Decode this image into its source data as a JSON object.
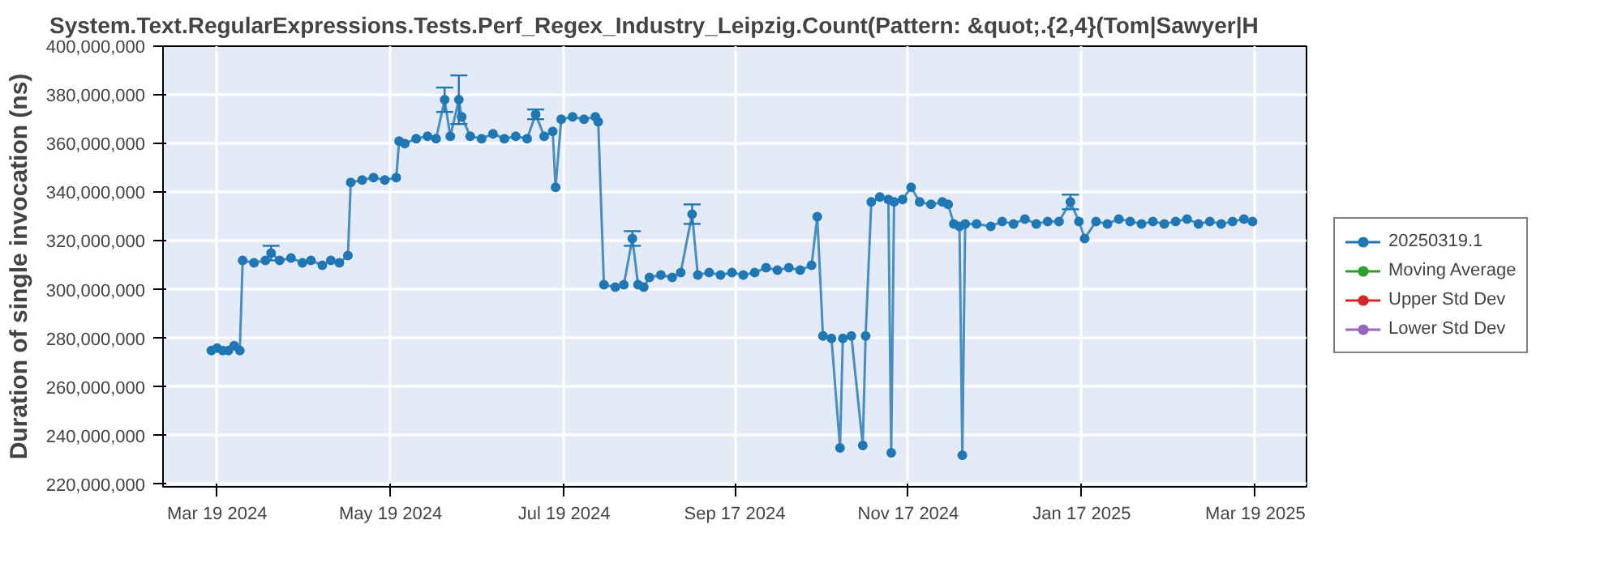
{
  "chart_data": {
    "type": "line",
    "title": "System.Text.RegularExpressions.Tests.Perf_Regex_Industry_Leipzig.Count(Pattern: &quot;.{2,4}(Tom|Sawyer|H",
    "ylabel": "Duration of single invocation (ns)",
    "x": [
      "2024-03-17",
      "2024-03-19",
      "2024-03-21",
      "2024-03-23",
      "2024-03-25",
      "2024-03-27",
      "2024-03-28",
      "2024-04-01",
      "2024-04-05",
      "2024-04-07",
      "2024-04-10",
      "2024-04-14",
      "2024-04-18",
      "2024-04-21",
      "2024-04-25",
      "2024-04-28",
      "2024-05-01",
      "2024-05-04",
      "2024-05-05",
      "2024-05-09",
      "2024-05-13",
      "2024-05-17",
      "2024-05-21",
      "2024-05-22",
      "2024-05-24",
      "2024-05-28",
      "2024-06-01",
      "2024-06-04",
      "2024-06-07",
      "2024-06-09",
      "2024-06-12",
      "2024-06-13",
      "2024-06-16",
      "2024-06-20",
      "2024-06-24",
      "2024-06-28",
      "2024-07-02",
      "2024-07-06",
      "2024-07-09",
      "2024-07-12",
      "2024-07-15",
      "2024-07-16",
      "2024-07-18",
      "2024-07-22",
      "2024-07-26",
      "2024-07-30",
      "2024-07-31",
      "2024-08-02",
      "2024-08-06",
      "2024-08-09",
      "2024-08-12",
      "2024-08-14",
      "2024-08-16",
      "2024-08-18",
      "2024-08-22",
      "2024-08-26",
      "2024-08-29",
      "2024-09-02",
      "2024-09-04",
      "2024-09-08",
      "2024-09-12",
      "2024-09-16",
      "2024-09-20",
      "2024-09-24",
      "2024-09-28",
      "2024-10-02",
      "2024-10-06",
      "2024-10-10",
      "2024-10-14",
      "2024-10-16",
      "2024-10-18",
      "2024-10-21",
      "2024-10-24",
      "2024-10-25",
      "2024-10-28",
      "2024-11-01",
      "2024-11-02",
      "2024-11-04",
      "2024-11-07",
      "2024-11-10",
      "2024-11-11",
      "2024-11-12",
      "2024-11-15",
      "2024-11-18",
      "2024-11-21",
      "2024-11-25",
      "2024-11-29",
      "2024-12-01",
      "2024-12-03",
      "2024-12-05",
      "2024-12-06",
      "2024-12-07",
      "2024-12-11",
      "2024-12-16",
      "2024-12-20",
      "2024-12-24",
      "2024-12-28",
      "2025-01-01",
      "2025-01-05",
      "2025-01-09",
      "2025-01-13",
      "2025-01-16",
      "2025-01-18",
      "2025-01-22",
      "2025-01-26",
      "2025-01-30",
      "2025-02-03",
      "2025-02-07",
      "2025-02-11",
      "2025-02-15",
      "2025-02-19",
      "2025-02-23",
      "2025-02-27",
      "2025-03-03",
      "2025-03-07",
      "2025-03-11",
      "2025-03-15",
      "2025-03-18"
    ],
    "series": [
      {
        "name": "20250319.1",
        "color": "#1f77b4",
        "values": [
          275000000,
          276000000,
          275000000,
          275000000,
          277000000,
          275000000,
          312000000,
          311000000,
          312000000,
          315000000,
          312000000,
          313000000,
          311000000,
          312000000,
          310000000,
          312000000,
          311000000,
          314000000,
          344000000,
          345000000,
          346000000,
          345000000,
          346000000,
          361000000,
          360000000,
          362000000,
          363000000,
          362000000,
          378000000,
          363000000,
          378000000,
          371000000,
          363000000,
          362000000,
          364000000,
          362000000,
          363000000,
          362000000,
          372000000,
          363000000,
          365000000,
          342000000,
          370000000,
          371000000,
          370000000,
          371000000,
          369000000,
          302000000,
          301000000,
          302000000,
          321000000,
          302000000,
          301000000,
          305000000,
          306000000,
          305000000,
          307000000,
          331000000,
          306000000,
          307000000,
          306000000,
          307000000,
          306000000,
          307000000,
          309000000,
          308000000,
          309000000,
          308000000,
          310000000,
          330000000,
          281000000,
          280000000,
          235000000,
          280000000,
          281000000,
          236000000,
          281000000,
          336000000,
          338000000,
          337000000,
          233000000,
          336000000,
          337000000,
          342000000,
          336000000,
          335000000,
          336000000,
          335000000,
          327000000,
          326000000,
          232000000,
          327000000,
          327000000,
          326000000,
          328000000,
          327000000,
          329000000,
          327000000,
          328000000,
          328000000,
          336000000,
          328000000,
          321000000,
          328000000,
          327000000,
          329000000,
          328000000,
          327000000,
          328000000,
          327000000,
          328000000,
          329000000,
          327000000,
          328000000,
          327000000,
          328000000,
          329000000,
          328000000
        ],
        "errors": [
          null,
          null,
          null,
          null,
          null,
          null,
          null,
          null,
          null,
          3000000,
          null,
          null,
          null,
          null,
          null,
          null,
          null,
          null,
          null,
          null,
          null,
          null,
          null,
          null,
          null,
          null,
          null,
          null,
          5000000,
          null,
          10000000,
          null,
          null,
          null,
          null,
          null,
          null,
          null,
          2000000,
          null,
          null,
          null,
          null,
          null,
          null,
          null,
          null,
          null,
          null,
          null,
          3000000,
          null,
          null,
          null,
          null,
          null,
          null,
          4000000,
          null,
          null,
          null,
          null,
          null,
          null,
          null,
          null,
          null,
          null,
          null,
          null,
          null,
          null,
          null,
          null,
          null,
          null,
          null,
          null,
          null,
          null,
          null,
          null,
          null,
          null,
          null,
          null,
          null,
          null,
          null,
          null,
          null,
          null,
          null,
          null,
          null,
          null,
          null,
          null,
          null,
          null,
          3000000,
          null,
          null,
          null,
          null,
          null,
          null,
          null,
          null,
          null,
          null,
          null,
          null,
          null,
          null,
          null,
          null,
          null
        ]
      },
      {
        "name": "Moving Average",
        "color": "#2ca02c",
        "values": [
          null,
          null,
          null,
          null,
          null,
          null,
          null,
          null,
          null,
          null,
          null,
          null,
          null,
          null,
          null,
          null,
          null,
          null,
          null,
          null,
          null,
          null,
          null,
          null,
          null,
          null,
          null,
          null,
          null,
          null,
          null,
          null,
          null,
          null,
          null,
          null,
          null,
          null,
          null,
          null,
          null,
          null,
          null,
          null,
          null,
          null,
          null,
          null,
          null,
          null,
          null,
          null,
          null,
          null,
          null,
          null,
          null,
          null,
          null,
          null,
          null,
          null,
          null,
          null,
          null,
          null,
          null,
          null,
          null,
          null,
          null,
          null,
          null,
          null,
          null,
          null,
          null,
          null,
          null,
          null,
          null,
          null,
          null,
          null,
          null,
          null,
          null,
          null,
          null,
          null,
          null,
          null,
          null,
          null,
          null,
          null,
          null,
          null,
          null,
          null,
          null,
          null,
          null,
          null,
          null,
          null,
          null,
          null,
          null,
          null,
          null,
          null,
          null,
          null,
          null,
          null,
          null,
          null
        ]
      },
      {
        "name": "Upper Std Dev",
        "color": "#d62728",
        "values": [
          null,
          null,
          null,
          null,
          null,
          null,
          null,
          null,
          null,
          null,
          null,
          null,
          null,
          null,
          null,
          null,
          null,
          null,
          null,
          null,
          null,
          null,
          null,
          null,
          null,
          null,
          null,
          null,
          null,
          null,
          null,
          null,
          null,
          null,
          null,
          null,
          null,
          null,
          null,
          null,
          null,
          null,
          null,
          null,
          null,
          null,
          null,
          null,
          null,
          null,
          null,
          null,
          null,
          null,
          null,
          null,
          null,
          null,
          null,
          null,
          null,
          null,
          null,
          null,
          null,
          null,
          null,
          null,
          null,
          null,
          null,
          null,
          null,
          null,
          null,
          null,
          null,
          null,
          null,
          null,
          null,
          null,
          null,
          null,
          null,
          null,
          null,
          null,
          null,
          null,
          null,
          null,
          null,
          null,
          null,
          null,
          null,
          null,
          null,
          null,
          null,
          null,
          null,
          null,
          null,
          null,
          null,
          null,
          null,
          null,
          null,
          null,
          null,
          null,
          null,
          null,
          null,
          null
        ]
      },
      {
        "name": "Lower Std Dev",
        "color": "#9467bd",
        "values": [
          null,
          null,
          null,
          null,
          null,
          null,
          null,
          null,
          null,
          null,
          null,
          null,
          null,
          null,
          null,
          null,
          null,
          null,
          null,
          null,
          null,
          null,
          null,
          null,
          null,
          null,
          null,
          null,
          null,
          null,
          null,
          null,
          null,
          null,
          null,
          null,
          null,
          null,
          null,
          null,
          null,
          null,
          null,
          null,
          null,
          null,
          null,
          null,
          null,
          null,
          null,
          null,
          null,
          null,
          null,
          null,
          null,
          null,
          null,
          null,
          null,
          null,
          null,
          null,
          null,
          null,
          null,
          null,
          null,
          null,
          null,
          null,
          null,
          null,
          null,
          null,
          null,
          null,
          null,
          null,
          null,
          null,
          null,
          null,
          null,
          null,
          null,
          null,
          null,
          null,
          null,
          null,
          null,
          null,
          null,
          null,
          null,
          null,
          null,
          null,
          null,
          null,
          null,
          null,
          null,
          null,
          null,
          null,
          null,
          null,
          null,
          null,
          null,
          null,
          null,
          null,
          null,
          null
        ]
      }
    ],
    "xlim": [
      "2024-02-29",
      "2025-04-06"
    ],
    "xticks": [
      {
        "value": "2024-03-19",
        "label": "Mar 19 2024"
      },
      {
        "value": "2024-05-19",
        "label": "May 19 2024"
      },
      {
        "value": "2024-07-19",
        "label": "Jul 19 2024"
      },
      {
        "value": "2024-09-17",
        "label": "Sep 17 2024"
      },
      {
        "value": "2024-11-17",
        "label": "Nov 17 2024"
      },
      {
        "value": "2025-01-17",
        "label": "Jan 17 2025"
      },
      {
        "value": "2025-03-19",
        "label": "Mar 19 2025"
      }
    ],
    "ylim": [
      219000000,
      400000000
    ],
    "yticks": [
      {
        "value": 220000000,
        "label": "220,000,000"
      },
      {
        "value": 240000000,
        "label": "240,000,000"
      },
      {
        "value": 260000000,
        "label": "260,000,000"
      },
      {
        "value": 280000000,
        "label": "280,000,000"
      },
      {
        "value": 300000000,
        "label": "300,000,000"
      },
      {
        "value": 320000000,
        "label": "320,000,000"
      },
      {
        "value": 340000000,
        "label": "340,000,000"
      },
      {
        "value": 360000000,
        "label": "360,000,000"
      },
      {
        "value": 380000000,
        "label": "380,000,000"
      },
      {
        "value": 400000000,
        "label": "400,000,000"
      }
    ],
    "grid": true,
    "legend": "right",
    "marker": "circle",
    "line_style": "solid"
  }
}
